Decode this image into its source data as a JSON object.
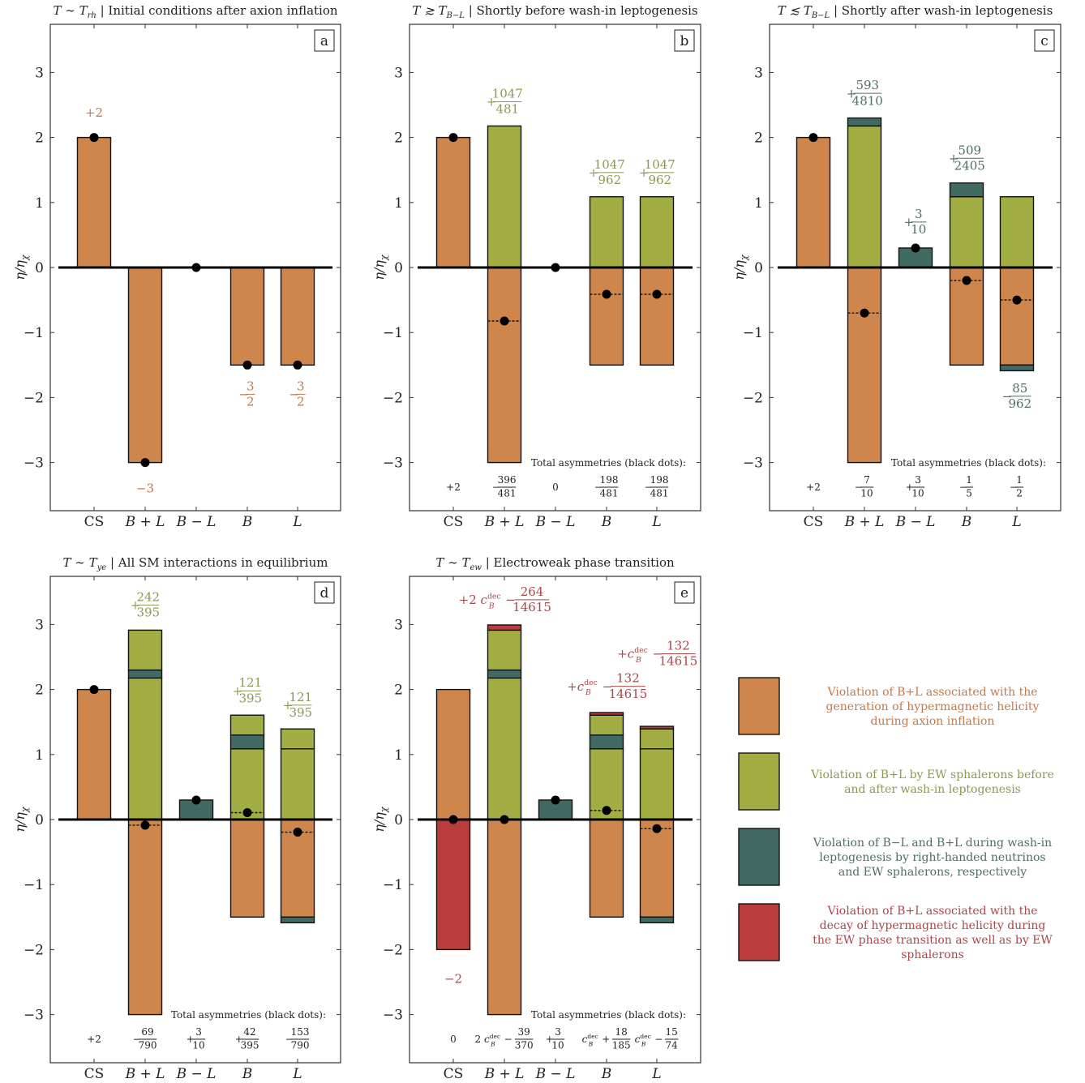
{
  "colors": {
    "inflation": "#cf864d",
    "sphaleron": "#a2ae44",
    "washin": "#416b62",
    "decay": "#bb3c3c",
    "text_orange": "#c07a4a",
    "text_green": "#8b9a52",
    "text_teal": "#4e6e68",
    "text_red": "#a9474b"
  },
  "ylabel": "η/η_χ",
  "yticks": [
    "−3",
    "−2",
    "−1",
    "0",
    "1",
    "2",
    "3"
  ],
  "categories": [
    "CS",
    "B + L",
    "B − L",
    "B",
    "L"
  ],
  "totals_heading": "Total asymmetries (black dots):",
  "chart_data": [
    {
      "type": "bar",
      "panel": "a",
      "title": "T ∼ T_rh   |   Initial conditions after axion inflation",
      "ylim": [
        -3.75,
        3.75
      ],
      "grid": false,
      "bars": [
        {
          "category": "CS",
          "segments": [
            {
              "from": 0,
              "to": 2,
              "color": "inflation"
            }
          ]
        },
        {
          "category": "B + L",
          "segments": [
            {
              "from": 0,
              "to": -3,
              "color": "inflation"
            }
          ]
        },
        {
          "category": "B − L",
          "segments": []
        },
        {
          "category": "B",
          "segments": [
            {
              "from": 0,
              "to": -1.5,
              "color": "inflation"
            }
          ]
        },
        {
          "category": "L",
          "segments": [
            {
              "from": 0,
              "to": -1.5,
              "color": "inflation"
            }
          ]
        }
      ],
      "dots": [
        {
          "x": 0,
          "y": 2
        },
        {
          "x": 1,
          "y": -3
        },
        {
          "x": 2,
          "y": 0
        },
        {
          "x": 3,
          "y": -1.5
        },
        {
          "x": 4,
          "y": -1.5
        }
      ],
      "annotations": [
        {
          "x": 0,
          "y": 2.38,
          "text": "+2",
          "color": "text_orange"
        },
        {
          "x": 1,
          "y": -3.4,
          "text": "−3",
          "color": "text_orange"
        },
        {
          "x": 3,
          "y": -1.95,
          "text": "−3/2",
          "color": "text_orange"
        },
        {
          "x": 4,
          "y": -1.95,
          "text": "−3/2",
          "color": "text_orange"
        }
      ],
      "totals": []
    },
    {
      "type": "bar",
      "panel": "b",
      "title": "T ≳ T_B−L   |   Shortly before wash-in leptogenesis",
      "ylim": [
        -3.75,
        3.75
      ],
      "grid": false,
      "bars": [
        {
          "category": "CS",
          "segments": [
            {
              "from": 0,
              "to": 2,
              "color": "inflation"
            }
          ]
        },
        {
          "category": "B + L",
          "segments": [
            {
              "from": 0,
              "to": -3,
              "color": "inflation"
            },
            {
              "from": 0,
              "to": 2.177,
              "color": "sphaleron"
            }
          ]
        },
        {
          "category": "B − L",
          "segments": []
        },
        {
          "category": "B",
          "segments": [
            {
              "from": 0,
              "to": -1.5,
              "color": "inflation"
            },
            {
              "from": 0,
              "to": 1.088,
              "color": "sphaleron"
            }
          ]
        },
        {
          "category": "L",
          "segments": [
            {
              "from": 0,
              "to": -1.5,
              "color": "inflation"
            },
            {
              "from": 0,
              "to": 1.088,
              "color": "sphaleron"
            }
          ]
        }
      ],
      "dots": [
        {
          "x": 0,
          "y": 2
        },
        {
          "x": 1,
          "y": -0.823,
          "dashed": true
        },
        {
          "x": 2,
          "y": 0
        },
        {
          "x": 3,
          "y": -0.412,
          "dashed": true
        },
        {
          "x": 4,
          "y": -0.412,
          "dashed": true
        }
      ],
      "annotations": [
        {
          "x": 1,
          "y": 2.55,
          "text": "+1047/481",
          "color": "text_green"
        },
        {
          "x": 3,
          "y": 1.46,
          "text": "+1047/962",
          "color": "text_green"
        },
        {
          "x": 4,
          "y": 1.46,
          "text": "+1047/962",
          "color": "text_green"
        }
      ],
      "totals": [
        "+2",
        "−396/481",
        "0",
        "−198/481",
        "−198/481"
      ]
    },
    {
      "type": "bar",
      "panel": "c",
      "title": "T ≲ T_B−L   |   Shortly after wash-in leptogenesis",
      "ylim": [
        -3.75,
        3.75
      ],
      "grid": false,
      "bars": [
        {
          "category": "CS",
          "segments": [
            {
              "from": 0,
              "to": 2,
              "color": "inflation"
            }
          ]
        },
        {
          "category": "B + L",
          "segments": [
            {
              "from": 0,
              "to": -3,
              "color": "inflation"
            },
            {
              "from": 0,
              "to": 2.177,
              "color": "sphaleron"
            },
            {
              "from": 2.177,
              "to": 2.3,
              "color": "washin"
            }
          ]
        },
        {
          "category": "B − L",
          "segments": [
            {
              "from": 0,
              "to": 0.3,
              "color": "washin"
            }
          ]
        },
        {
          "category": "B",
          "segments": [
            {
              "from": 0,
              "to": -1.5,
              "color": "inflation"
            },
            {
              "from": 0,
              "to": 1.088,
              "color": "sphaleron"
            },
            {
              "from": 1.088,
              "to": 1.3,
              "color": "washin"
            }
          ]
        },
        {
          "category": "L",
          "segments": [
            {
              "from": 0,
              "to": -1.5,
              "color": "inflation"
            },
            {
              "from": 0,
              "to": 1.088,
              "color": "sphaleron"
            },
            {
              "from": -1.5,
              "to": -1.588,
              "color": "washin"
            }
          ]
        }
      ],
      "dots": [
        {
          "x": 0,
          "y": 2
        },
        {
          "x": 1,
          "y": -0.7,
          "dashed": true
        },
        {
          "x": 2,
          "y": 0.3
        },
        {
          "x": 3,
          "y": -0.2,
          "dashed": true
        },
        {
          "x": 4,
          "y": -0.5,
          "dashed": true
        }
      ],
      "annotations": [
        {
          "x": 1,
          "y": 2.68,
          "text": "+593/4810",
          "color": "text_teal"
        },
        {
          "x": 2,
          "y": 0.7,
          "text": "+3/10",
          "color": "text_teal"
        },
        {
          "x": 3,
          "y": 1.68,
          "text": "+509/2405",
          "color": "text_teal"
        },
        {
          "x": 4,
          "y": -1.98,
          "text": "−85/962",
          "color": "text_teal"
        }
      ],
      "totals": [
        "+2",
        "−7/10",
        "+3/10",
        "−1/5",
        "−1/2"
      ]
    },
    {
      "type": "bar",
      "panel": "d",
      "title": "T ∼ T_ye   |   All SM interactions in equilibrium",
      "ylim": [
        -3.75,
        3.75
      ],
      "grid": false,
      "bars": [
        {
          "category": "CS",
          "segments": [
            {
              "from": 0,
              "to": 2,
              "color": "inflation"
            }
          ]
        },
        {
          "category": "B + L",
          "segments": [
            {
              "from": 0,
              "to": -3,
              "color": "inflation"
            },
            {
              "from": 0,
              "to": 2.177,
              "color": "sphaleron"
            },
            {
              "from": 2.177,
              "to": 2.3,
              "color": "washin"
            },
            {
              "from": 2.3,
              "to": 2.913,
              "color": "sphaleron"
            }
          ]
        },
        {
          "category": "B − L",
          "segments": [
            {
              "from": 0,
              "to": 0.3,
              "color": "washin"
            }
          ]
        },
        {
          "category": "B",
          "segments": [
            {
              "from": 0,
              "to": -1.5,
              "color": "inflation"
            },
            {
              "from": 0,
              "to": 1.088,
              "color": "sphaleron"
            },
            {
              "from": 1.088,
              "to": 1.3,
              "color": "washin"
            },
            {
              "from": 1.3,
              "to": 1.606,
              "color": "sphaleron"
            }
          ]
        },
        {
          "category": "L",
          "segments": [
            {
              "from": 0,
              "to": -1.5,
              "color": "inflation"
            },
            {
              "from": 0,
              "to": 1.088,
              "color": "sphaleron"
            },
            {
              "from": -1.5,
              "to": -1.588,
              "color": "washin"
            },
            {
              "from": 1.088,
              "to": 1.394,
              "color": "sphaleron"
            }
          ]
        }
      ],
      "dots": [
        {
          "x": 0,
          "y": 2
        },
        {
          "x": 1,
          "y": -0.087,
          "dashed": true
        },
        {
          "x": 2,
          "y": 0.3
        },
        {
          "x": 3,
          "y": 0.106,
          "dashed": true
        },
        {
          "x": 4,
          "y": -0.194,
          "dashed": true
        }
      ],
      "annotations": [
        {
          "x": 1,
          "y": 3.3,
          "text": "+242/395",
          "color": "text_green"
        },
        {
          "x": 3,
          "y": 1.98,
          "text": "+121/395",
          "color": "text_green"
        },
        {
          "x": 4,
          "y": 1.76,
          "text": "+121/395",
          "color": "text_green"
        }
      ],
      "totals": [
        "+2",
        "−69/790",
        "+3/10",
        "+42/395",
        "−153/790"
      ]
    },
    {
      "type": "bar",
      "panel": "e",
      "title": "T ∼ T_ew   |   Electroweak phase transition",
      "ylim": [
        -3.75,
        3.75
      ],
      "grid": false,
      "bars": [
        {
          "category": "CS",
          "segments": [
            {
              "from": 0,
              "to": 2,
              "color": "inflation"
            },
            {
              "from": 0,
              "to": -2,
              "color": "decay"
            }
          ]
        },
        {
          "category": "B + L",
          "segments": [
            {
              "from": 0,
              "to": -3,
              "color": "inflation"
            },
            {
              "from": 0,
              "to": 2.177,
              "color": "sphaleron"
            },
            {
              "from": 2.177,
              "to": 2.3,
              "color": "washin"
            },
            {
              "from": 2.3,
              "to": 2.913,
              "color": "sphaleron"
            },
            {
              "from": 2.913,
              "to": 2.993,
              "color": "decay"
            }
          ]
        },
        {
          "category": "B − L",
          "segments": [
            {
              "from": 0,
              "to": 0.3,
              "color": "washin"
            }
          ]
        },
        {
          "category": "B",
          "segments": [
            {
              "from": 0,
              "to": -1.5,
              "color": "inflation"
            },
            {
              "from": 0,
              "to": 1.088,
              "color": "sphaleron"
            },
            {
              "from": 1.088,
              "to": 1.3,
              "color": "washin"
            },
            {
              "from": 1.3,
              "to": 1.606,
              "color": "sphaleron"
            },
            {
              "from": 1.606,
              "to": 1.646,
              "color": "decay"
            }
          ]
        },
        {
          "category": "L",
          "segments": [
            {
              "from": 0,
              "to": -1.5,
              "color": "inflation"
            },
            {
              "from": 0,
              "to": 1.088,
              "color": "sphaleron"
            },
            {
              "from": -1.5,
              "to": -1.588,
              "color": "washin"
            },
            {
              "from": 1.088,
              "to": 1.394,
              "color": "sphaleron"
            },
            {
              "from": 1.394,
              "to": 1.434,
              "color": "decay"
            }
          ]
        }
      ],
      "dots": [
        {
          "x": 0,
          "y": 0
        },
        {
          "x": 1,
          "y": 0
        },
        {
          "x": 2,
          "y": 0.3
        },
        {
          "x": 3,
          "y": 0.14,
          "dashed": true
        },
        {
          "x": 4,
          "y": -0.14,
          "dashed": true
        }
      ],
      "annotations": [
        {
          "x": 1,
          "y": 3.38,
          "text": "+2 c_B^dec − 264/14615",
          "color": "text_red"
        },
        {
          "x": 3,
          "y": 2.05,
          "text": "+c_B^dec − 132/14615",
          "color": "text_red"
        },
        {
          "x": 4,
          "y": 2.55,
          "text": "+c_B^dec − 132/14615",
          "color": "text_red"
        },
        {
          "x": 0,
          "y": -2.45,
          "text": "−2",
          "color": "text_red"
        }
      ],
      "totals": [
        "0",
        "2 c_B^dec − 39/370",
        "+3/10",
        "c_B^dec + 18/185",
        "c_B^dec − 15/74"
      ]
    }
  ],
  "legend": [
    {
      "color": "inflation",
      "text_color": "text_orange",
      "text": "Violation of B+L associated with the generation of hypermagnetic helicity during axion inflation"
    },
    {
      "color": "sphaleron",
      "text_color": "text_green",
      "text": "Violation of B+L by EW sphalerons before and after wash-in leptogenesis"
    },
    {
      "color": "washin",
      "text_color": "text_teal",
      "text": "Violation of B−L and B+L during wash-in leptogenesis by right-handed neutrinos and EW sphalerons, respectively"
    },
    {
      "color": "decay",
      "text_color": "text_red",
      "text": "Violation of B+L associated with the decay of hypermagnetic helicity during the EW phase transition as well as by EW sphalerons"
    }
  ]
}
